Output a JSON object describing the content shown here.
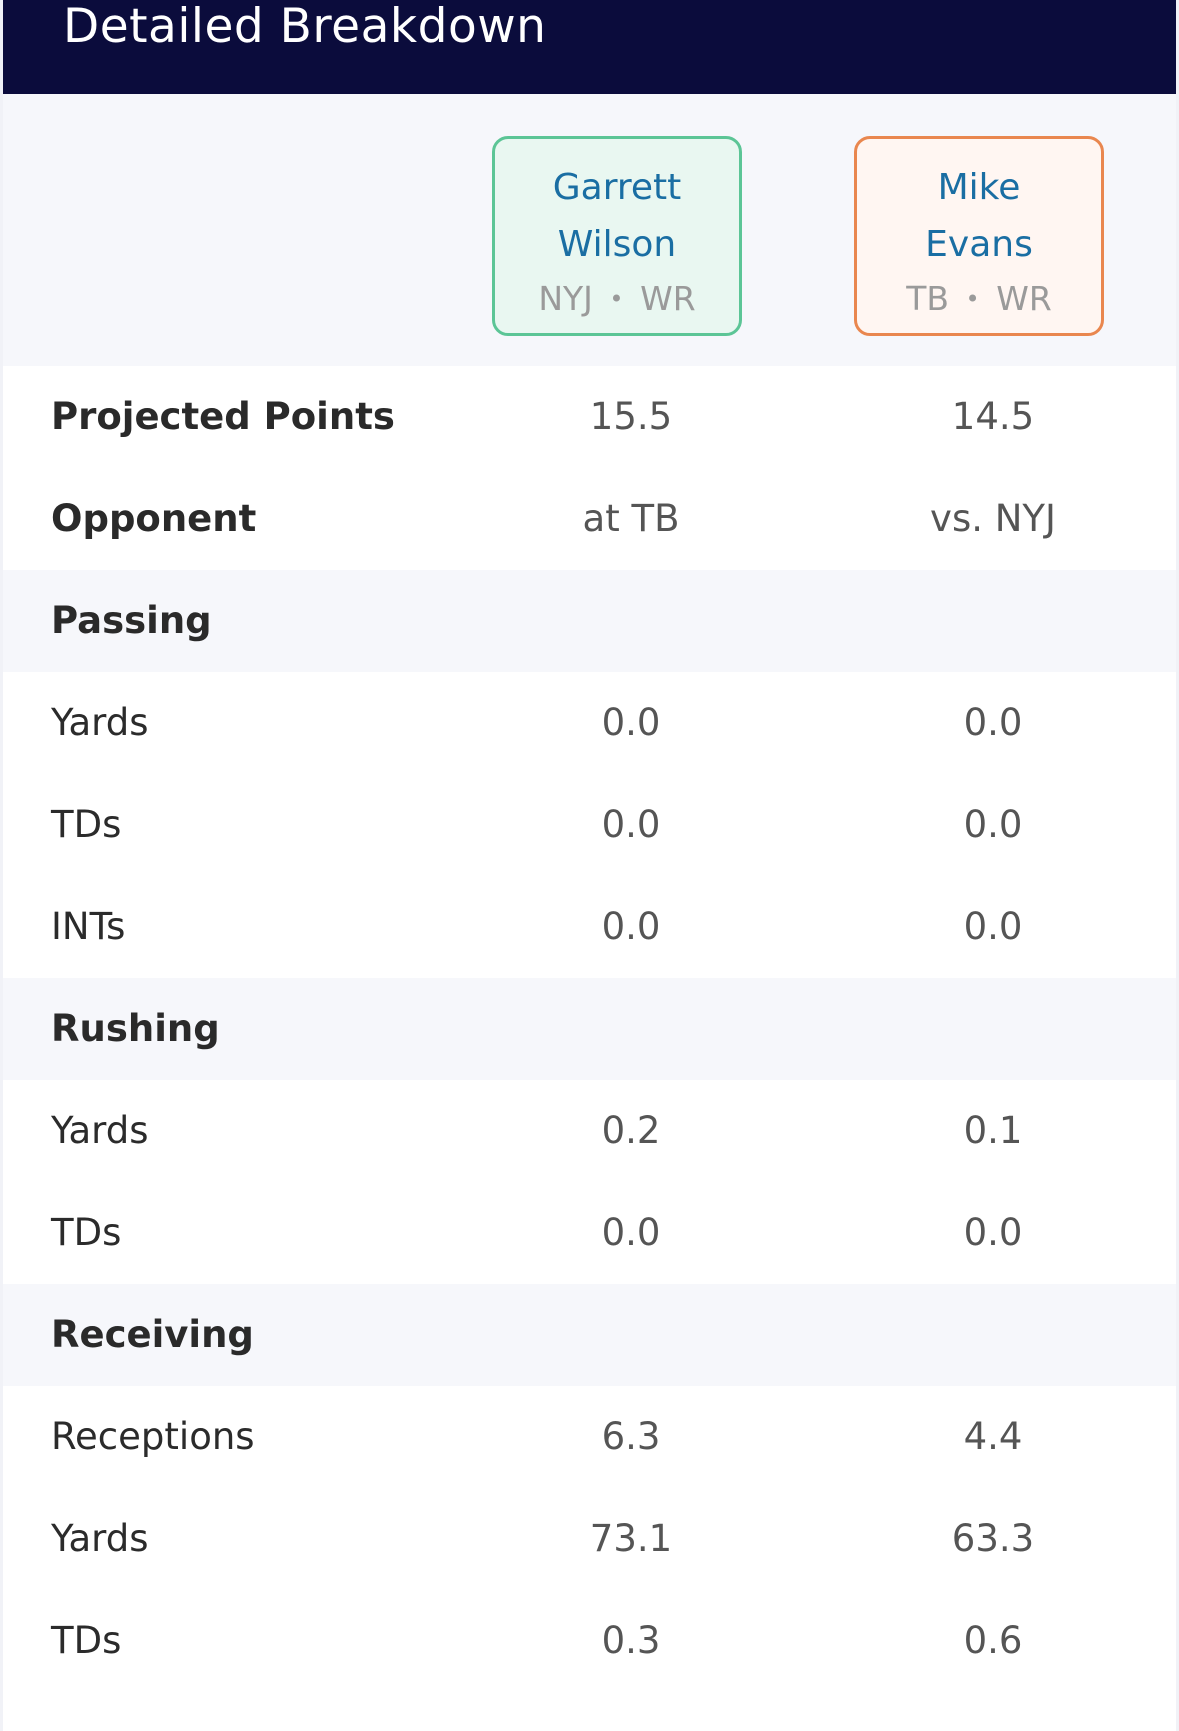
{
  "header": {
    "title": "Detailed Breakdown"
  },
  "players": [
    {
      "first": "Garrett",
      "last": "Wilson",
      "team": "NYJ",
      "position": "WR",
      "accent": "#5cc596"
    },
    {
      "first": "Mike",
      "last": "Evans",
      "team": "TB",
      "position": "WR",
      "accent": "#e9874f"
    }
  ],
  "summary": {
    "projected": {
      "label": "Projected Points",
      "p1": "15.5",
      "p2": "14.5"
    },
    "opponent": {
      "label": "Opponent",
      "p1": "at TB",
      "p2": "vs. NYJ"
    }
  },
  "passing": {
    "label": "Passing",
    "yards": {
      "label": "Yards",
      "p1": "0.0",
      "p2": "0.0"
    },
    "tds": {
      "label": "TDs",
      "p1": "0.0",
      "p2": "0.0"
    },
    "ints": {
      "label": "INTs",
      "p1": "0.0",
      "p2": "0.0"
    }
  },
  "rushing": {
    "label": "Rushing",
    "yards": {
      "label": "Yards",
      "p1": "0.2",
      "p2": "0.1"
    },
    "tds": {
      "label": "TDs",
      "p1": "0.0",
      "p2": "0.0"
    }
  },
  "receiving": {
    "label": "Receiving",
    "receptions": {
      "label": "Receptions",
      "p1": "6.3",
      "p2": "4.4"
    },
    "yards": {
      "label": "Yards",
      "p1": "73.1",
      "p2": "63.3"
    },
    "tds": {
      "label": "TDs",
      "p1": "0.3",
      "p2": "0.6"
    }
  },
  "separator": "•"
}
